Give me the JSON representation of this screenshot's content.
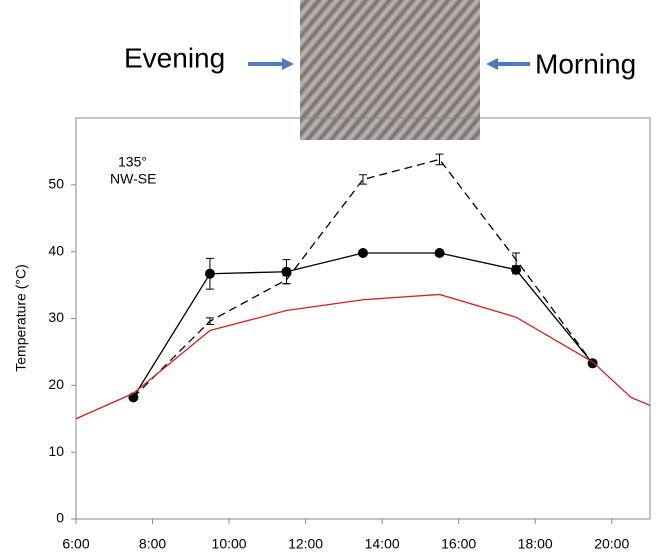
{
  "chart_data": {
    "type": "line",
    "header_left": "Evening",
    "header_right": "Morning",
    "annotation": [
      "135°",
      "NW-SE"
    ],
    "y_label": "Temperature (°C)",
    "xlim": [
      6,
      21
    ],
    "xticks": [
      {
        "value": 6,
        "label": "6:00"
      },
      {
        "value": 8,
        "label": "8:00"
      },
      {
        "value": 10,
        "label": "10:00"
      },
      {
        "value": 12,
        "label": "12:00"
      },
      {
        "value": 14,
        "label": "14:00"
      },
      {
        "value": 16,
        "label": "16:00"
      },
      {
        "value": 18,
        "label": "18:00"
      },
      {
        "value": 20,
        "label": "20:00"
      }
    ],
    "ylim": [
      0,
      60
    ],
    "yticks": [
      0,
      10,
      20,
      30,
      40,
      50
    ],
    "series": [
      {
        "color": "#000000",
        "dash": "solid",
        "markers": true,
        "x": [
          7.5,
          9.5,
          11.5,
          13.5,
          15.5,
          17.5,
          19.5
        ],
        "values": [
          18.2,
          36.7,
          37,
          39.8,
          39.8,
          37.3,
          23.3
        ],
        "errors": [
          null,
          2.3,
          1.8,
          null,
          null,
          0.6,
          null
        ]
      },
      {
        "color": "#000000",
        "dash": "dashed",
        "markers": false,
        "x": [
          7.5,
          9.5,
          11.5,
          13.5,
          15.5,
          17.5,
          19.5
        ],
        "values": [
          18.2,
          29.6,
          35.8,
          50.8,
          53.8,
          38.8,
          23.3
        ],
        "errors": [
          null,
          0.5,
          0.6,
          0.7,
          0.8,
          1,
          null
        ]
      },
      {
        "color": "#d42020",
        "dash": "solid",
        "markers": false,
        "x": [
          6,
          7.5,
          9.5,
          11.5,
          13.5,
          15.5,
          17.5,
          19.5,
          20.5,
          21
        ],
        "values": [
          15,
          18.8,
          28.2,
          31.2,
          32.8,
          33.6,
          30.2,
          23.5,
          18.2,
          17
        ]
      }
    ]
  }
}
